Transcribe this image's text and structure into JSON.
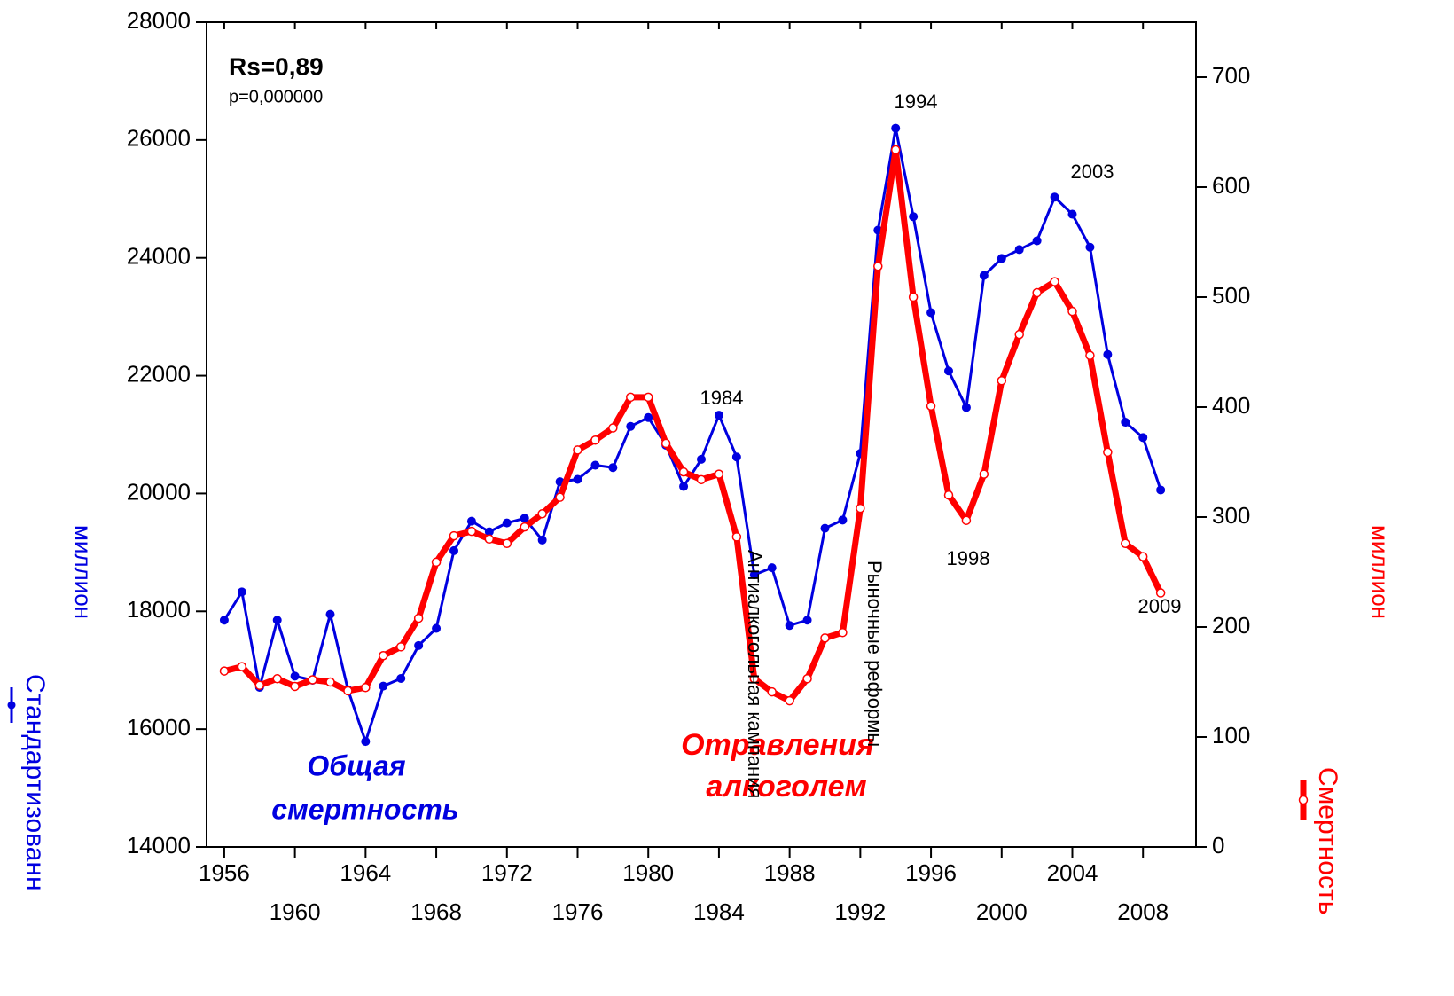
{
  "chart_data": {
    "type": "line",
    "y_label": "миллион",
    "y2_label": "миллион",
    "x": [
      1956,
      1957,
      1958,
      1959,
      1960,
      1961,
      1962,
      1963,
      1964,
      1965,
      1966,
      1967,
      1968,
      1969,
      1970,
      1971,
      1972,
      1973,
      1974,
      1975,
      1976,
      1977,
      1978,
      1979,
      1980,
      1981,
      1982,
      1983,
      1984,
      1985,
      1986,
      1987,
      1988,
      1989,
      1990,
      1991,
      1992,
      1993,
      1994,
      1995,
      1996,
      1997,
      1998,
      1999,
      2000,
      2001,
      2002,
      2003,
      2004,
      2005,
      2006,
      2007,
      2008,
      2009
    ],
    "xlim": [
      1955,
      2011
    ],
    "xticks": [
      1956,
      1960,
      1964,
      1968,
      1972,
      1976,
      1980,
      1984,
      1988,
      1992,
      1996,
      2000,
      2004,
      2008
    ],
    "ylim": [
      14000,
      28000
    ],
    "yticks": [
      14000,
      16000,
      18000,
      20000,
      22000,
      24000,
      26000,
      28000
    ],
    "y2lim": [
      0,
      750
    ],
    "y2ticks": [
      0,
      100,
      200,
      300,
      400,
      500,
      600,
      700
    ],
    "series": [
      {
        "name": "Стандартизованн",
        "color": "#0000e0",
        "axis": "y",
        "values": [
          17850,
          18330,
          16710,
          17850,
          16900,
          16830,
          17950,
          16670,
          15790,
          16730,
          16860,
          17420,
          17710,
          19030,
          19530,
          19350,
          19500,
          19580,
          19210,
          20200,
          20240,
          20480,
          20440,
          21140,
          21290,
          20820,
          20120,
          20580,
          21330,
          20620,
          18620,
          18740,
          17760,
          17850,
          19410,
          19550,
          20680,
          24470,
          26200,
          24700,
          23070,
          22080,
          21460,
          23700,
          23990,
          24140,
          24290,
          25030,
          24740,
          24180,
          22360,
          21210,
          20950,
          20060
        ]
      },
      {
        "name": "Смертность",
        "color": "#ff0000",
        "axis": "y2",
        "values": [
          160,
          164,
          147,
          153,
          146,
          152,
          150,
          142,
          145,
          174,
          182,
          208,
          259,
          283,
          287,
          280,
          276,
          291,
          303,
          318,
          361,
          370,
          381,
          409,
          409,
          367,
          341,
          334,
          339,
          282,
          153,
          141,
          133,
          153,
          190,
          195,
          308,
          528,
          634,
          500,
          401,
          320,
          297,
          339,
          424,
          466,
          504,
          514,
          487,
          447,
          359,
          276,
          264,
          231
        ]
      }
    ],
    "annotations": [
      "Rs=0,89",
      "p=0,000000",
      "1994",
      "2003",
      "1984",
      "1998",
      "2009",
      "Общая",
      "смертность",
      "Отравления",
      "алкоголем",
      "Антиалкогольная кампания",
      "Рыночные  реформы"
    ]
  }
}
